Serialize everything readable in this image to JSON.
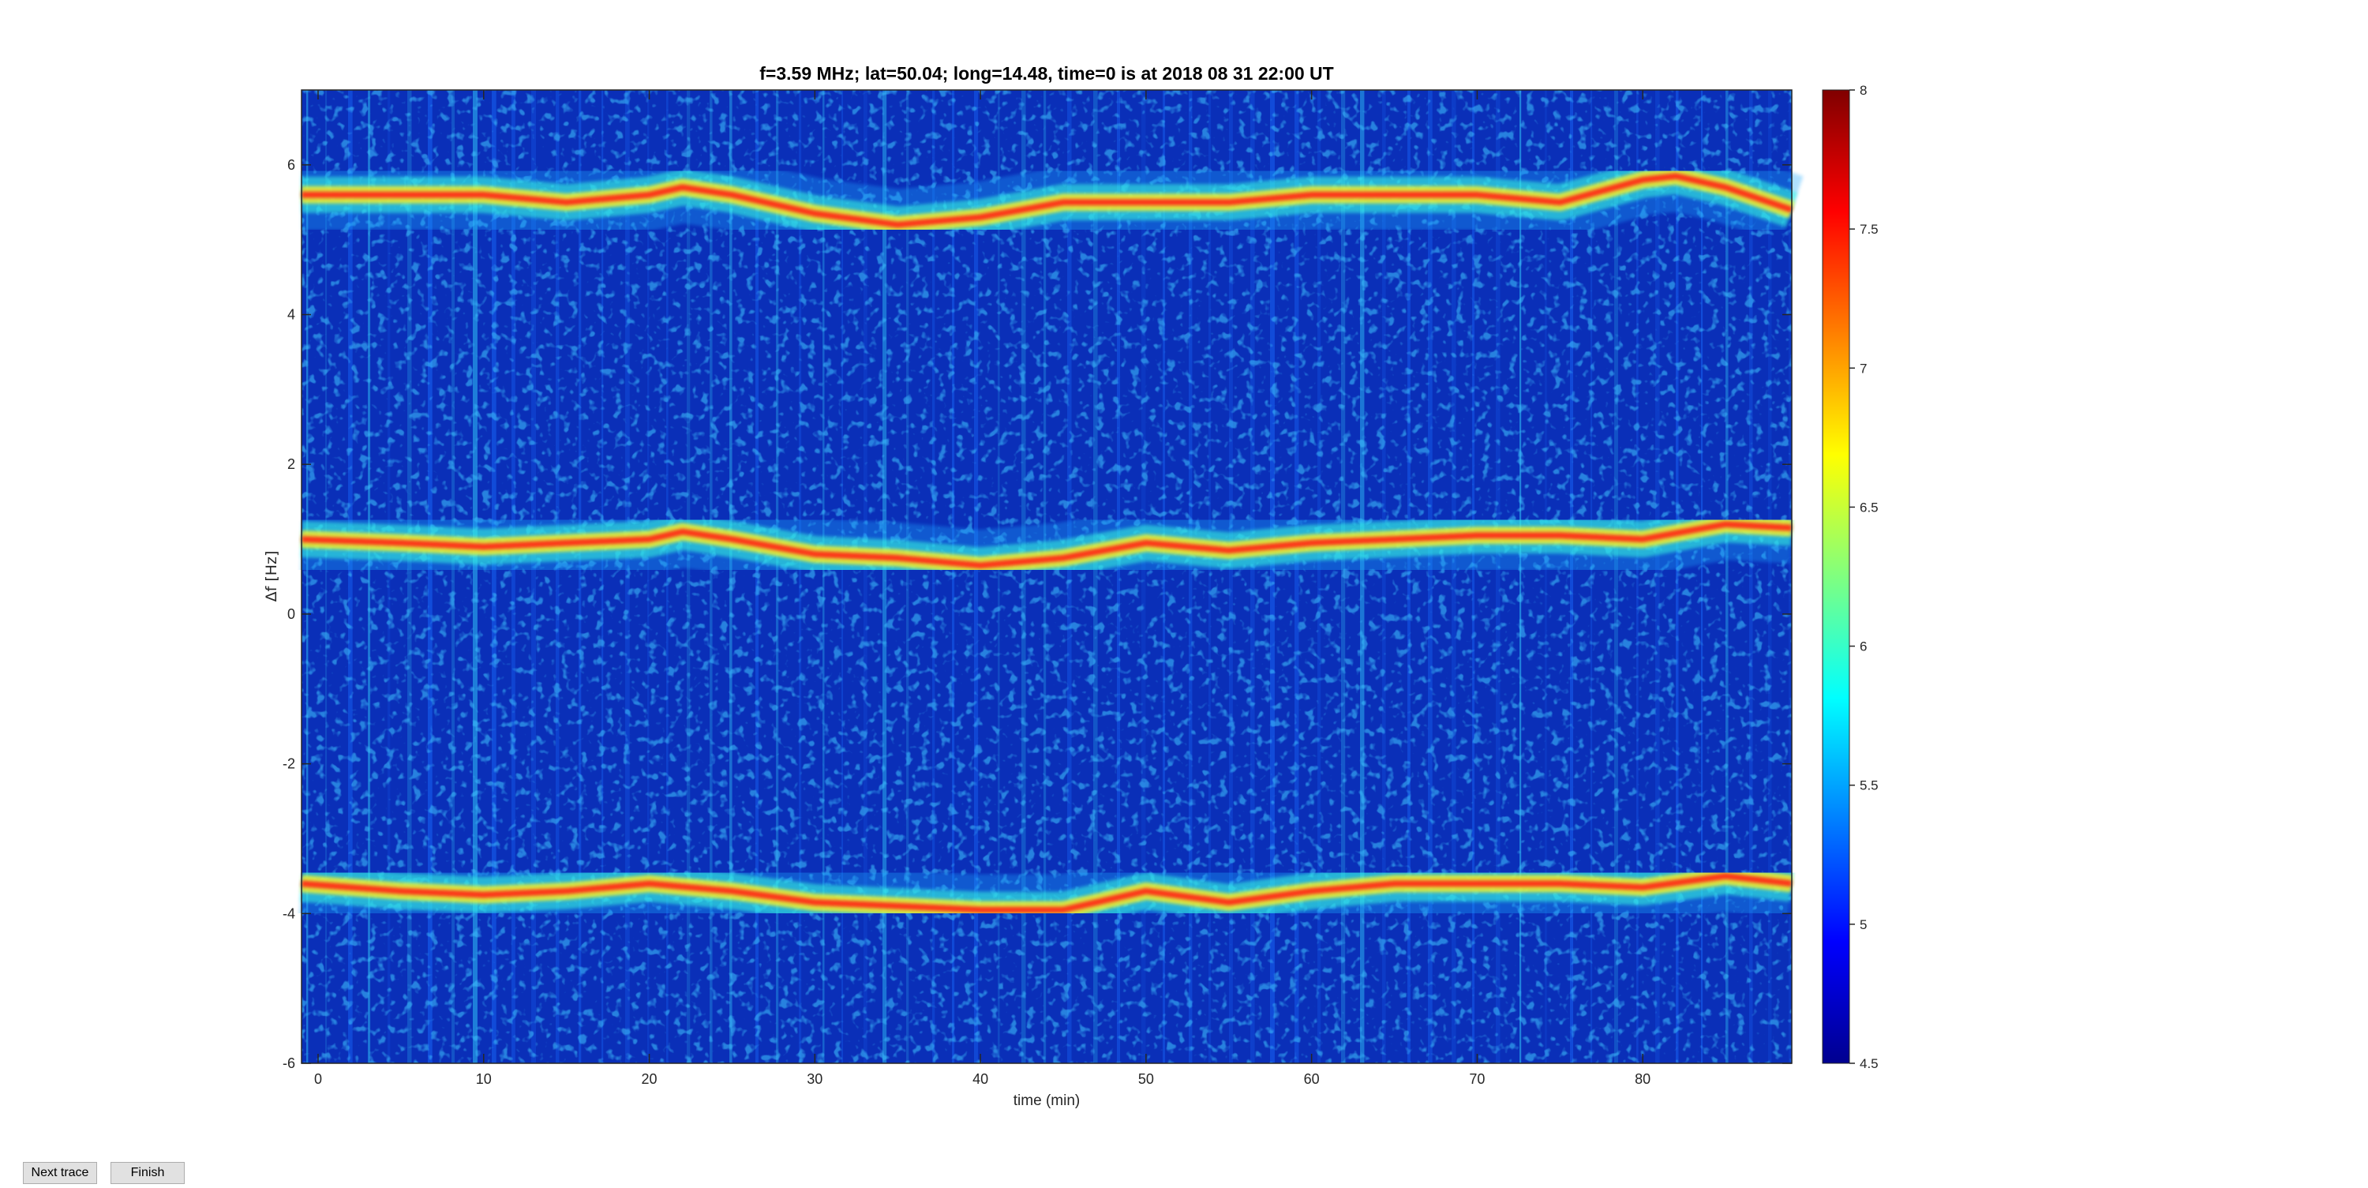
{
  "buttons": {
    "next_label": "Next trace",
    "finish_label": "Finish"
  },
  "chart_data": {
    "type": "heatmap",
    "title": "f=3.59 MHz;  lat=50.04; long=14.48, time=0 is at 2018 08 31 22:00 UT",
    "xlabel": "time (min)",
    "ylabel": "Δf [Hz]",
    "xlim": [
      -1,
      89
    ],
    "ylim": [
      -6,
      7
    ],
    "xticks": [
      0,
      10,
      20,
      30,
      40,
      50,
      60,
      70,
      80
    ],
    "yticks": [
      -6,
      -4,
      -2,
      0,
      2,
      4,
      6
    ],
    "colorbar": {
      "range": [
        4.5,
        8
      ],
      "ticks": [
        4.5,
        5,
        5.5,
        6,
        6.5,
        7,
        7.5,
        8
      ],
      "colormap": "jet"
    },
    "grid": false,
    "traces": [
      {
        "x": [
          -1,
          5,
          10,
          15,
          20,
          22,
          25,
          30,
          35,
          40,
          45,
          50,
          55,
          60,
          65,
          70,
          75,
          80,
          82,
          85,
          89
        ],
        "y": [
          5.6,
          5.6,
          5.6,
          5.5,
          5.6,
          5.7,
          5.6,
          5.35,
          5.2,
          5.3,
          5.5,
          5.5,
          5.5,
          5.6,
          5.6,
          5.6,
          5.5,
          5.8,
          5.85,
          5.7,
          5.4
        ]
      },
      {
        "x": [
          -1,
          5,
          10,
          15,
          20,
          22,
          25,
          30,
          35,
          40,
          45,
          50,
          55,
          60,
          65,
          70,
          75,
          80,
          85,
          89
        ],
        "y": [
          1.0,
          0.95,
          0.9,
          0.95,
          1.0,
          1.1,
          1.0,
          0.8,
          0.75,
          0.65,
          0.75,
          0.95,
          0.85,
          0.95,
          1.0,
          1.05,
          1.05,
          1.0,
          1.2,
          1.15
        ]
      },
      {
        "x": [
          -1,
          5,
          10,
          15,
          20,
          25,
          30,
          35,
          40,
          45,
          50,
          55,
          60,
          65,
          70,
          75,
          80,
          85,
          89
        ],
        "y": [
          -3.6,
          -3.7,
          -3.75,
          -3.7,
          -3.6,
          -3.7,
          -3.85,
          -3.9,
          -3.95,
          -3.95,
          -3.7,
          -3.85,
          -3.7,
          -3.6,
          -3.6,
          -3.6,
          -3.65,
          -3.5,
          -3.6
        ]
      }
    ]
  }
}
